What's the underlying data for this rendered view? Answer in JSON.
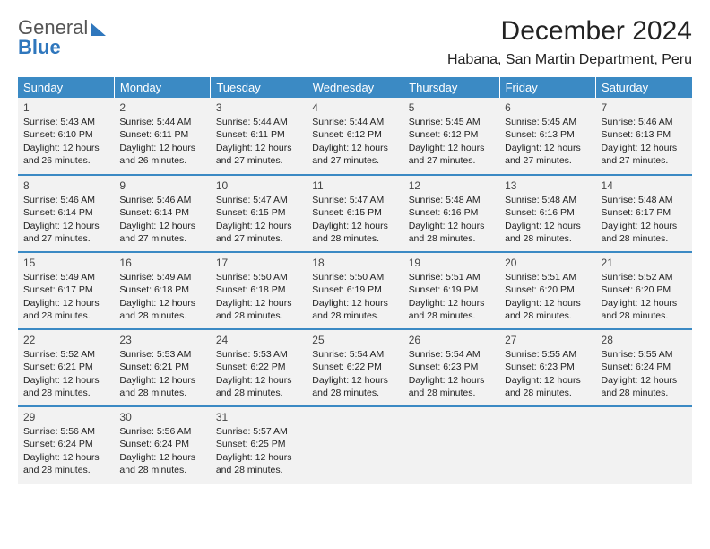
{
  "logo": {
    "line1a": "General",
    "line2": "Blue"
  },
  "title": "December 2024",
  "location": "Habana, San Martin Department, Peru",
  "colors": {
    "header_bg": "#3b8ac4",
    "header_fg": "#ffffff",
    "cell_bg": "#f2f2f2",
    "row_border": "#3b8ac4",
    "logo_accent": "#2f77bd"
  },
  "weekdays": [
    "Sunday",
    "Monday",
    "Tuesday",
    "Wednesday",
    "Thursday",
    "Friday",
    "Saturday"
  ],
  "weeks": [
    [
      {
        "n": "1",
        "sr": "Sunrise: 5:43 AM",
        "ss": "Sunset: 6:10 PM",
        "d1": "Daylight: 12 hours",
        "d2": "and 26 minutes."
      },
      {
        "n": "2",
        "sr": "Sunrise: 5:44 AM",
        "ss": "Sunset: 6:11 PM",
        "d1": "Daylight: 12 hours",
        "d2": "and 26 minutes."
      },
      {
        "n": "3",
        "sr": "Sunrise: 5:44 AM",
        "ss": "Sunset: 6:11 PM",
        "d1": "Daylight: 12 hours",
        "d2": "and 27 minutes."
      },
      {
        "n": "4",
        "sr": "Sunrise: 5:44 AM",
        "ss": "Sunset: 6:12 PM",
        "d1": "Daylight: 12 hours",
        "d2": "and 27 minutes."
      },
      {
        "n": "5",
        "sr": "Sunrise: 5:45 AM",
        "ss": "Sunset: 6:12 PM",
        "d1": "Daylight: 12 hours",
        "d2": "and 27 minutes."
      },
      {
        "n": "6",
        "sr": "Sunrise: 5:45 AM",
        "ss": "Sunset: 6:13 PM",
        "d1": "Daylight: 12 hours",
        "d2": "and 27 minutes."
      },
      {
        "n": "7",
        "sr": "Sunrise: 5:46 AM",
        "ss": "Sunset: 6:13 PM",
        "d1": "Daylight: 12 hours",
        "d2": "and 27 minutes."
      }
    ],
    [
      {
        "n": "8",
        "sr": "Sunrise: 5:46 AM",
        "ss": "Sunset: 6:14 PM",
        "d1": "Daylight: 12 hours",
        "d2": "and 27 minutes."
      },
      {
        "n": "9",
        "sr": "Sunrise: 5:46 AM",
        "ss": "Sunset: 6:14 PM",
        "d1": "Daylight: 12 hours",
        "d2": "and 27 minutes."
      },
      {
        "n": "10",
        "sr": "Sunrise: 5:47 AM",
        "ss": "Sunset: 6:15 PM",
        "d1": "Daylight: 12 hours",
        "d2": "and 27 minutes."
      },
      {
        "n": "11",
        "sr": "Sunrise: 5:47 AM",
        "ss": "Sunset: 6:15 PM",
        "d1": "Daylight: 12 hours",
        "d2": "and 28 minutes."
      },
      {
        "n": "12",
        "sr": "Sunrise: 5:48 AM",
        "ss": "Sunset: 6:16 PM",
        "d1": "Daylight: 12 hours",
        "d2": "and 28 minutes."
      },
      {
        "n": "13",
        "sr": "Sunrise: 5:48 AM",
        "ss": "Sunset: 6:16 PM",
        "d1": "Daylight: 12 hours",
        "d2": "and 28 minutes."
      },
      {
        "n": "14",
        "sr": "Sunrise: 5:48 AM",
        "ss": "Sunset: 6:17 PM",
        "d1": "Daylight: 12 hours",
        "d2": "and 28 minutes."
      }
    ],
    [
      {
        "n": "15",
        "sr": "Sunrise: 5:49 AM",
        "ss": "Sunset: 6:17 PM",
        "d1": "Daylight: 12 hours",
        "d2": "and 28 minutes."
      },
      {
        "n": "16",
        "sr": "Sunrise: 5:49 AM",
        "ss": "Sunset: 6:18 PM",
        "d1": "Daylight: 12 hours",
        "d2": "and 28 minutes."
      },
      {
        "n": "17",
        "sr": "Sunrise: 5:50 AM",
        "ss": "Sunset: 6:18 PM",
        "d1": "Daylight: 12 hours",
        "d2": "and 28 minutes."
      },
      {
        "n": "18",
        "sr": "Sunrise: 5:50 AM",
        "ss": "Sunset: 6:19 PM",
        "d1": "Daylight: 12 hours",
        "d2": "and 28 minutes."
      },
      {
        "n": "19",
        "sr": "Sunrise: 5:51 AM",
        "ss": "Sunset: 6:19 PM",
        "d1": "Daylight: 12 hours",
        "d2": "and 28 minutes."
      },
      {
        "n": "20",
        "sr": "Sunrise: 5:51 AM",
        "ss": "Sunset: 6:20 PM",
        "d1": "Daylight: 12 hours",
        "d2": "and 28 minutes."
      },
      {
        "n": "21",
        "sr": "Sunrise: 5:52 AM",
        "ss": "Sunset: 6:20 PM",
        "d1": "Daylight: 12 hours",
        "d2": "and 28 minutes."
      }
    ],
    [
      {
        "n": "22",
        "sr": "Sunrise: 5:52 AM",
        "ss": "Sunset: 6:21 PM",
        "d1": "Daylight: 12 hours",
        "d2": "and 28 minutes."
      },
      {
        "n": "23",
        "sr": "Sunrise: 5:53 AM",
        "ss": "Sunset: 6:21 PM",
        "d1": "Daylight: 12 hours",
        "d2": "and 28 minutes."
      },
      {
        "n": "24",
        "sr": "Sunrise: 5:53 AM",
        "ss": "Sunset: 6:22 PM",
        "d1": "Daylight: 12 hours",
        "d2": "and 28 minutes."
      },
      {
        "n": "25",
        "sr": "Sunrise: 5:54 AM",
        "ss": "Sunset: 6:22 PM",
        "d1": "Daylight: 12 hours",
        "d2": "and 28 minutes."
      },
      {
        "n": "26",
        "sr": "Sunrise: 5:54 AM",
        "ss": "Sunset: 6:23 PM",
        "d1": "Daylight: 12 hours",
        "d2": "and 28 minutes."
      },
      {
        "n": "27",
        "sr": "Sunrise: 5:55 AM",
        "ss": "Sunset: 6:23 PM",
        "d1": "Daylight: 12 hours",
        "d2": "and 28 minutes."
      },
      {
        "n": "28",
        "sr": "Sunrise: 5:55 AM",
        "ss": "Sunset: 6:24 PM",
        "d1": "Daylight: 12 hours",
        "d2": "and 28 minutes."
      }
    ],
    [
      {
        "n": "29",
        "sr": "Sunrise: 5:56 AM",
        "ss": "Sunset: 6:24 PM",
        "d1": "Daylight: 12 hours",
        "d2": "and 28 minutes."
      },
      {
        "n": "30",
        "sr": "Sunrise: 5:56 AM",
        "ss": "Sunset: 6:24 PM",
        "d1": "Daylight: 12 hours",
        "d2": "and 28 minutes."
      },
      {
        "n": "31",
        "sr": "Sunrise: 5:57 AM",
        "ss": "Sunset: 6:25 PM",
        "d1": "Daylight: 12 hours",
        "d2": "and 28 minutes."
      },
      null,
      null,
      null,
      null
    ]
  ]
}
